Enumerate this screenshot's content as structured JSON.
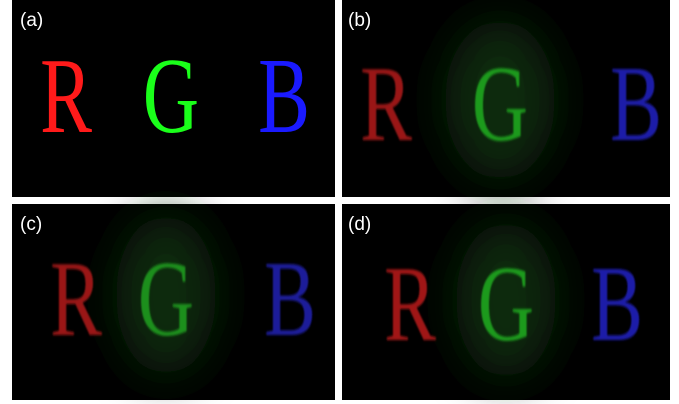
{
  "panels": [
    {
      "label": "(a)",
      "letters": [
        "R",
        "G",
        "B"
      ]
    },
    {
      "label": "(b)",
      "letters": [
        "R",
        "G",
        "B"
      ]
    },
    {
      "label": "(c)",
      "letters": [
        "R",
        "G",
        "B"
      ]
    },
    {
      "label": "(d)",
      "letters": [
        "R",
        "G",
        "B"
      ]
    }
  ]
}
